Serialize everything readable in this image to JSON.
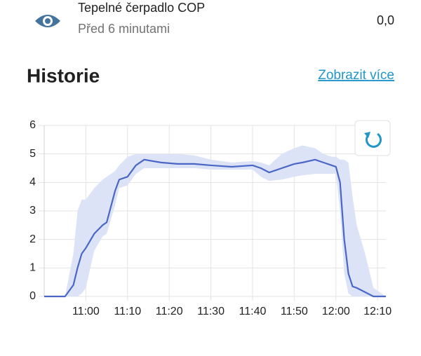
{
  "entity": {
    "name": "Tepelné čerpadlo COP",
    "last_changed": "Před 6 minutami",
    "state": "0,0"
  },
  "section": {
    "title": "Historie",
    "link": "Zobrazit více"
  },
  "chart_data": {
    "type": "line",
    "x": [
      "10:50",
      "10:55",
      "10:57",
      "10:58",
      "10:59",
      "11:00",
      "11:02",
      "11:04",
      "11:05",
      "11:07",
      "11:08",
      "11:10",
      "11:12",
      "11:14",
      "11:18",
      "11:22",
      "11:26",
      "11:30",
      "11:35",
      "11:40",
      "11:42",
      "11:44",
      "11:47",
      "11:50",
      "11:52",
      "11:55",
      "11:57",
      "11:59",
      "12:00",
      "12:01",
      "12:02",
      "12:03",
      "12:04",
      "12:05",
      "12:07",
      "12:09",
      "12:12"
    ],
    "series": [
      {
        "color": "#4a67c6",
        "values": [
          0,
          0,
          0.4,
          1.0,
          1.5,
          1.7,
          2.2,
          2.5,
          2.6,
          3.7,
          4.1,
          4.2,
          4.6,
          4.8,
          4.7,
          4.65,
          4.65,
          4.6,
          4.55,
          4.6,
          4.5,
          4.35,
          4.5,
          4.65,
          4.7,
          4.8,
          4.7,
          4.6,
          4.55,
          4.0,
          2.0,
          0.8,
          0.35,
          0.3,
          0.15,
          0,
          0
        ]
      }
    ],
    "band": {
      "color": "#dde3f7",
      "lower": [
        0,
        0,
        0,
        0,
        0.1,
        0.3,
        1.6,
        2.1,
        2.2,
        3.2,
        3.8,
        3.9,
        4.3,
        4.5,
        4.5,
        4.5,
        4.5,
        4.45,
        4.45,
        4.45,
        4.2,
        4.05,
        4.1,
        4.2,
        4.25,
        4.3,
        4.3,
        4.3,
        4.3,
        3.0,
        0.8,
        0.1,
        0,
        0,
        0,
        0,
        0
      ],
      "upper": [
        0,
        0,
        1.5,
        3.0,
        3.4,
        3.4,
        3.8,
        4.1,
        4.2,
        4.4,
        4.6,
        4.9,
        5.0,
        5.0,
        5.0,
        5.0,
        4.95,
        4.8,
        4.7,
        4.75,
        4.7,
        4.6,
        5.0,
        5.2,
        5.3,
        5.2,
        5.0,
        4.9,
        4.9,
        4.8,
        4.8,
        4.7,
        3.5,
        2.5,
        1.5,
        0.3,
        0
      ]
    },
    "xlim": [
      "10:50",
      "12:12"
    ],
    "xticks": [
      "11:00",
      "11:10",
      "11:20",
      "11:30",
      "11:40",
      "11:50",
      "12:00",
      "12:10"
    ],
    "ylim": [
      0,
      6
    ],
    "yticks": [
      0,
      1,
      2,
      3,
      4,
      5,
      6
    ],
    "grid": true
  }
}
